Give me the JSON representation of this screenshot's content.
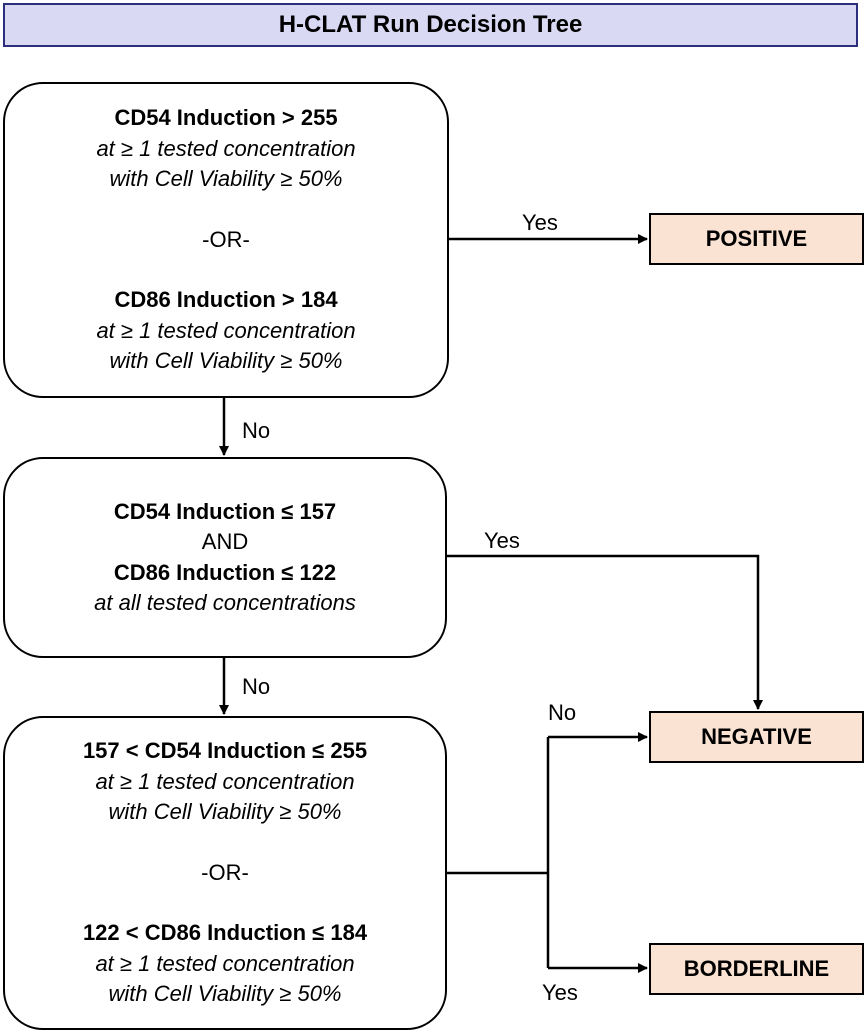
{
  "title": "H-CLAT Run Decision Tree",
  "box1": {
    "l1": "CD54 Induction > 255",
    "l2": "at ≥ 1 tested concentration",
    "l3": "with Cell Viability ≥ 50%",
    "or": "-OR-",
    "l4": "CD86 Induction > 184",
    "l5": "at ≥ 1 tested concentration",
    "l6": "with Cell Viability ≥ 50%"
  },
  "box2": {
    "l1": "CD54 Induction ≤ 157",
    "and": "AND",
    "l2": "CD86 Induction ≤ 122",
    "l3": "at all tested concentrations"
  },
  "box3": {
    "l1": "157 < CD54 Induction ≤ 255",
    "l2": "at ≥ 1 tested concentration",
    "l3": "with Cell Viability ≥ 50%",
    "or": "-OR-",
    "l4": "122 < CD86 Induction ≤ 184",
    "l5": "at ≥ 1 tested concentration",
    "l6": "with Cell Viability ≥ 50%"
  },
  "outcomes": {
    "positive": "POSITIVE",
    "negative": "NEGATIVE",
    "borderline": "BORDERLINE"
  },
  "labels": {
    "yes1": "Yes",
    "no1": "No",
    "yes2": "Yes",
    "no2": "No",
    "no3": "No",
    "yes3": "Yes"
  }
}
